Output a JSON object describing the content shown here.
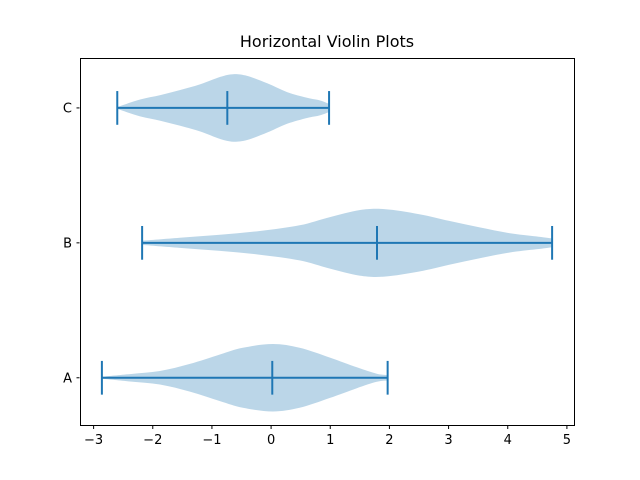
{
  "figure": {
    "background": "#ffffff"
  },
  "chart_data": {
    "type": "violin",
    "orientation": "horizontal",
    "title": "Horizontal Violin Plots",
    "xlabel": "",
    "ylabel": "",
    "grid": false,
    "legend": null,
    "xlim": [
      -3.23,
      5.12
    ],
    "ylim": [
      0.65,
      3.37
    ],
    "x_ticks": {
      "values": [
        -3,
        -2,
        -1,
        0,
        1,
        2,
        3,
        4,
        5
      ],
      "labels": [
        "−3",
        "−2",
        "−1",
        "0",
        "1",
        "2",
        "3",
        "4",
        "5"
      ]
    },
    "categories": [
      "A",
      "B",
      "C"
    ],
    "violin_max_halfwidth": 0.25,
    "marker_halfheight": 0.125,
    "colors": {
      "line": "#1f77b4",
      "fill": "#1f77b4",
      "fill_opacity": 0.3,
      "axis": "#000000",
      "text": "#000000"
    },
    "series": [
      {
        "label": "A",
        "position": 1,
        "min": -2.86,
        "mean": 0.02,
        "max": 1.97,
        "profile": [
          [
            0,
            0.03
          ],
          [
            0.098,
            0.11
          ],
          [
            0.203,
            0.2
          ],
          [
            0.308,
            0.41
          ],
          [
            0.413,
            0.69
          ],
          [
            0.493,
            0.89
          ],
          [
            0.598,
            1.0
          ],
          [
            0.692,
            0.89
          ],
          [
            0.797,
            0.6
          ],
          [
            0.892,
            0.31
          ],
          [
            0.962,
            0.12
          ],
          [
            1,
            0.08
          ]
        ]
      },
      {
        "label": "B",
        "position": 2,
        "min": -2.18,
        "mean": 1.79,
        "max": 4.75,
        "profile": [
          [
            0,
            0.06
          ],
          [
            0.092,
            0.15
          ],
          [
            0.19,
            0.24
          ],
          [
            0.287,
            0.35
          ],
          [
            0.384,
            0.52
          ],
          [
            0.457,
            0.76
          ],
          [
            0.53,
            0.97
          ],
          [
            0.591,
            1.0
          ],
          [
            0.676,
            0.85
          ],
          [
            0.749,
            0.65
          ],
          [
            0.822,
            0.46
          ],
          [
            0.895,
            0.29
          ],
          [
            0.961,
            0.19
          ],
          [
            1,
            0.13
          ]
        ]
      },
      {
        "label": "C",
        "position": 3,
        "min": -2.6,
        "mean": -0.74,
        "max": 0.98,
        "profile": [
          [
            0,
            0.03
          ],
          [
            0.108,
            0.25
          ],
          [
            0.203,
            0.38
          ],
          [
            0.297,
            0.53
          ],
          [
            0.392,
            0.7
          ],
          [
            0.486,
            0.92
          ],
          [
            0.547,
            1.0
          ],
          [
            0.613,
            0.95
          ],
          [
            0.708,
            0.73
          ],
          [
            0.802,
            0.47
          ],
          [
            0.896,
            0.3
          ],
          [
            0.958,
            0.22
          ],
          [
            1,
            0.12
          ]
        ]
      }
    ]
  }
}
